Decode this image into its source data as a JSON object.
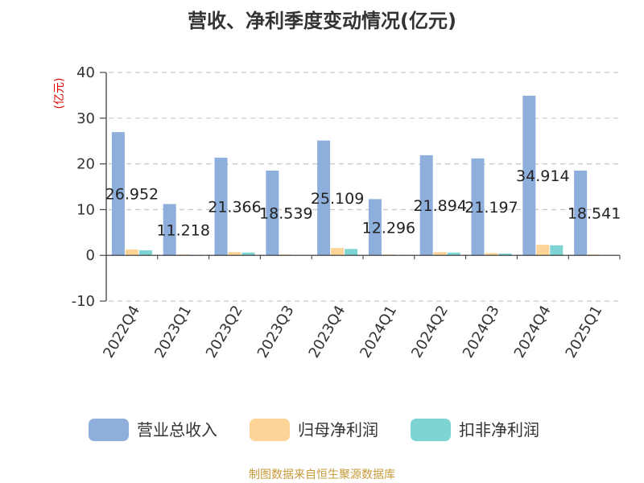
{
  "chart_data": {
    "type": "bar",
    "title": "营收、净利季度变动情况(亿元)",
    "unit_label": "(亿元)",
    "categories": [
      "2022Q4",
      "2023Q1",
      "2023Q2",
      "2023Q3",
      "2023Q4",
      "2024Q1",
      "2024Q2",
      "2024Q3",
      "2024Q4",
      "2025Q1"
    ],
    "series": [
      {
        "name": "营业总收入",
        "color": "#8eaedc",
        "values": [
          26.952,
          11.218,
          21.366,
          18.539,
          25.109,
          12.296,
          21.894,
          21.197,
          34.914,
          18.541
        ]
      },
      {
        "name": "归母净利润",
        "color": "#fcd497",
        "values": [
          1.3,
          0.2,
          0.7,
          0.2,
          1.6,
          0.2,
          0.7,
          0.5,
          2.3,
          0.2
        ]
      },
      {
        "name": "扣非净利润",
        "color": "#7ed3d3",
        "values": [
          1.1,
          -0.1,
          0.6,
          0.1,
          1.4,
          0.1,
          0.6,
          0.4,
          2.2,
          0.1
        ]
      }
    ],
    "data_labels": [
      "26.952",
      "11.218",
      "21.366",
      "18.539",
      "25.109",
      "12.296",
      "21.894",
      "21.197",
      "34.914",
      "18.541"
    ],
    "yticks": [
      "40",
      "30",
      "20",
      "10",
      "0",
      "-10"
    ],
    "ylim": [
      -10,
      40
    ],
    "grid": true,
    "legend_position": "bottom"
  },
  "source": "制图数据来自恒生聚源数据库"
}
